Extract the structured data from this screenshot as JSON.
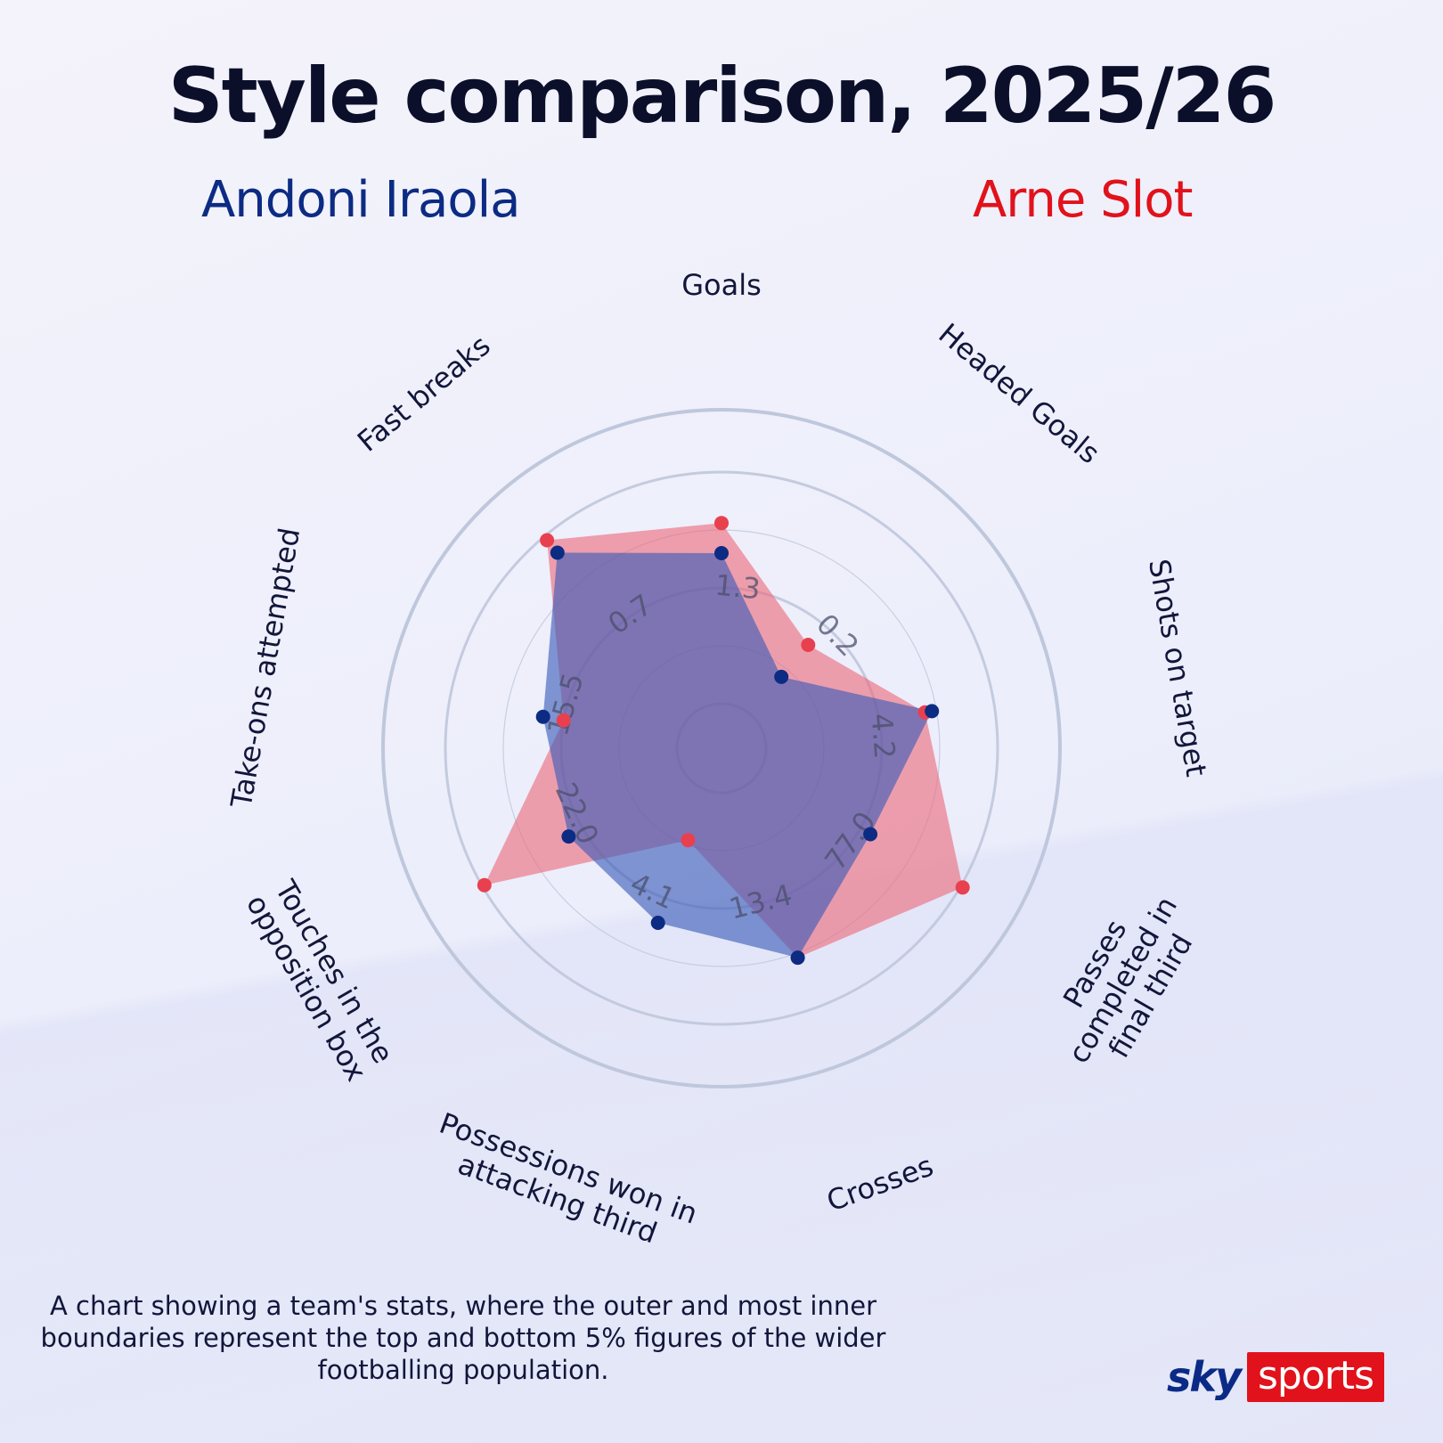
{
  "header": {
    "title": "Style comparison, 2025/26",
    "team_a": "Andoni Iraola",
    "team_b": "Arne Slot"
  },
  "chart_data": {
    "type": "radar",
    "title": "Style comparison, 2025/26",
    "axes": [
      {
        "name": "Goals",
        "tick_label": "1.3"
      },
      {
        "name": "Headed Goals",
        "tick_label": "0.2"
      },
      {
        "name": "Shots on target",
        "tick_label": "4.2"
      },
      {
        "name": "Passes completed in final third",
        "tick_label": "77.0"
      },
      {
        "name": "Crosses",
        "tick_label": "13.4"
      },
      {
        "name": "Possessions won in attacking third",
        "tick_label": "4.1"
      },
      {
        "name": "Touches in the opposition box",
        "tick_label": "22.0"
      },
      {
        "name": "Take-ons attempted",
        "tick_label": "15.5"
      },
      {
        "name": "Fast breaks",
        "tick_label": "0.7"
      }
    ],
    "scale": "percentile, inner ring = bottom 5%, outer ring = top 5%",
    "series": [
      {
        "name": "Andoni Iraola",
        "color": "#0c2b83",
        "values": [
          0.65,
          0.21,
          0.73,
          0.55,
          0.77,
          0.61,
          0.57,
          0.59,
          0.91
        ]
      },
      {
        "name": "Arne Slot",
        "color": "#e8404e",
        "values": [
          0.78,
          0.39,
          0.7,
          1.01,
          0.77,
          0.23,
          0.99,
          0.5,
          0.98
        ]
      }
    ],
    "colors": {
      "team_a_fill": "#3a5ab8",
      "team_b_fill": "#ec6b7a",
      "overlap": "#6b4a92",
      "ring": "#bfc7dc"
    }
  },
  "footnote": "A chart showing a team's stats, where the outer and most inner boundaries represent the top  and bottom 5% figures of the wider footballing population.",
  "logo": {
    "sky": "sky",
    "sports": "sports"
  }
}
